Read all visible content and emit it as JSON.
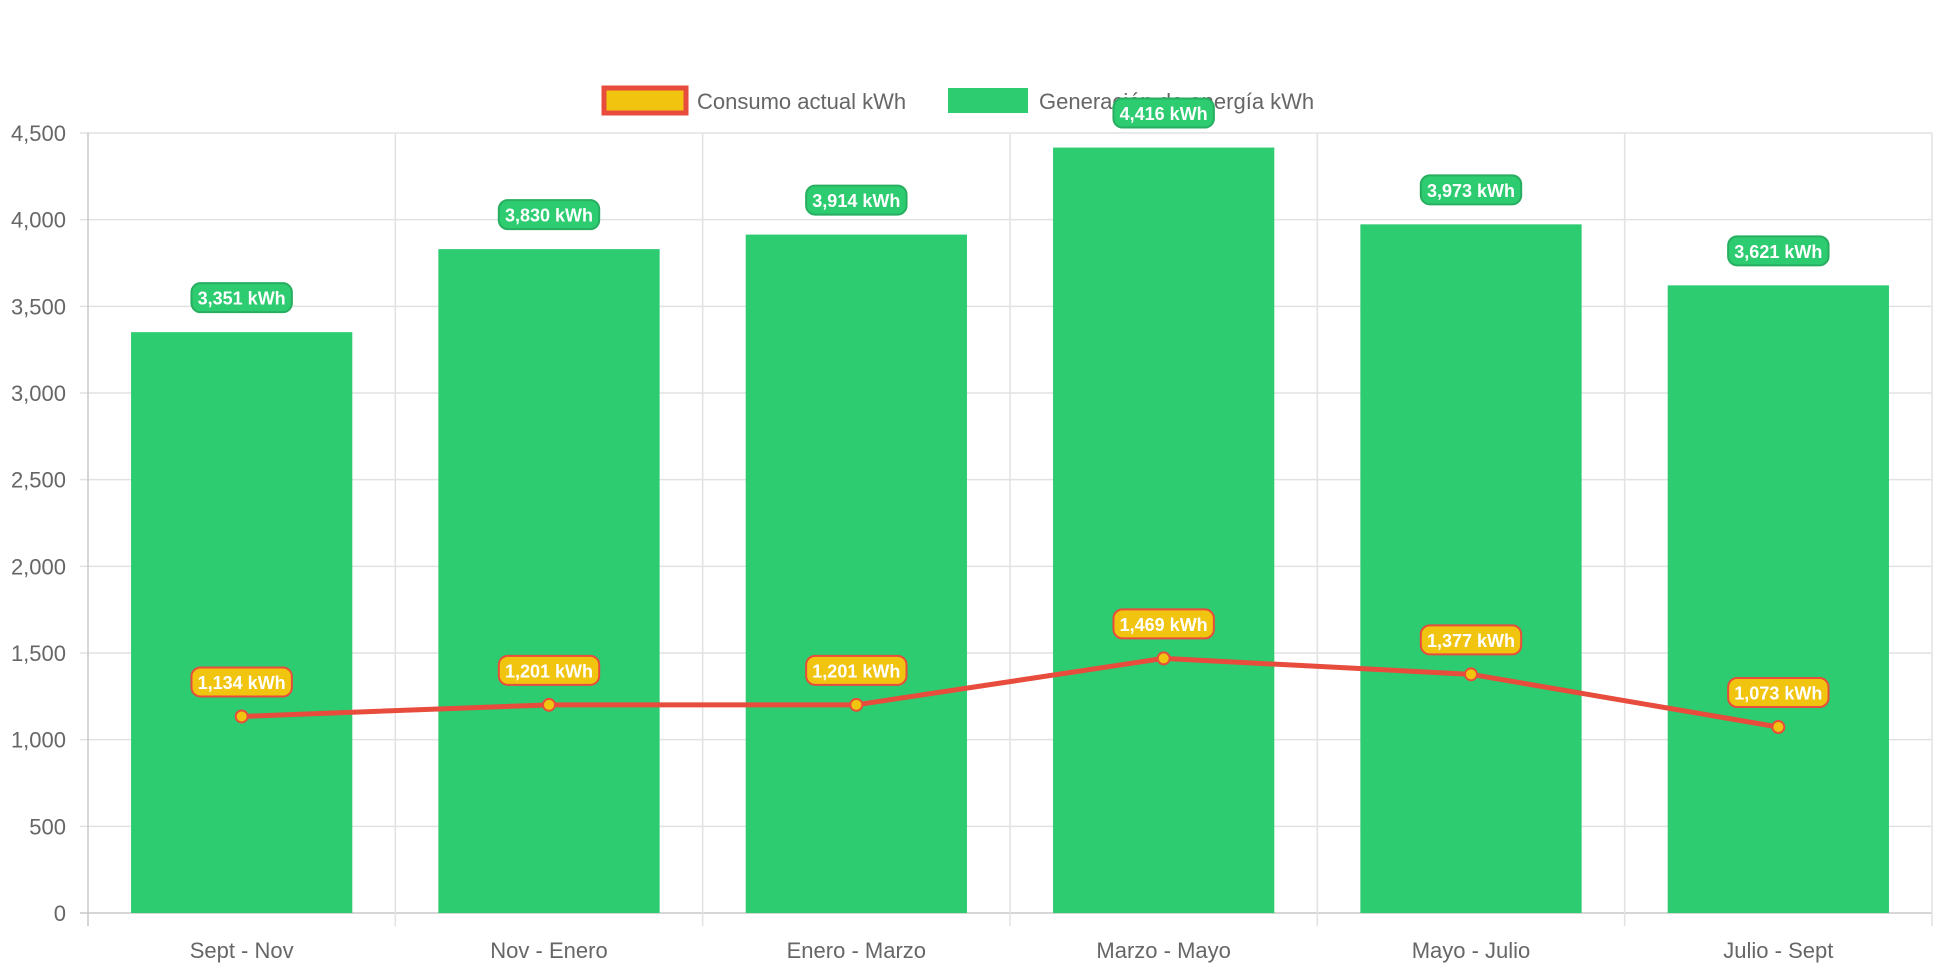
{
  "chart_data": {
    "type": "bar",
    "categories": [
      "Sept - Nov",
      "Nov - Enero",
      "Enero - Marzo",
      "Marzo - Mayo",
      "Mayo - Julio",
      "Julio - Sept"
    ],
    "series": [
      {
        "name": "Consumo actual kWh",
        "kind": "line",
        "values": [
          1134,
          1201,
          1201,
          1469,
          1377,
          1073
        ],
        "labels": [
          "1,134 kWh",
          "1,201 kWh",
          "1,201 kWh",
          "1,469 kWh",
          "1,377 kWh",
          "1,073 kWh"
        ],
        "color": "#e74c3c",
        "fill": "#f1c40f"
      },
      {
        "name": "Generación de energía kWh",
        "kind": "bar",
        "values": [
          3351,
          3830,
          3914,
          4416,
          3973,
          3621
        ],
        "labels": [
          "3,351 kWh",
          "3,830 kWh",
          "3,914 kWh",
          "4,416 kWh",
          "3,973 kWh",
          "3,621 kWh"
        ],
        "color": "#2ecc71"
      }
    ],
    "yticks": [
      "0",
      "500",
      "1,000",
      "1,500",
      "2,000",
      "2,500",
      "3,000",
      "3,500",
      "4,000",
      "4,500"
    ],
    "ylim": [
      0,
      4500
    ],
    "grid": true,
    "legend_position": "top"
  }
}
